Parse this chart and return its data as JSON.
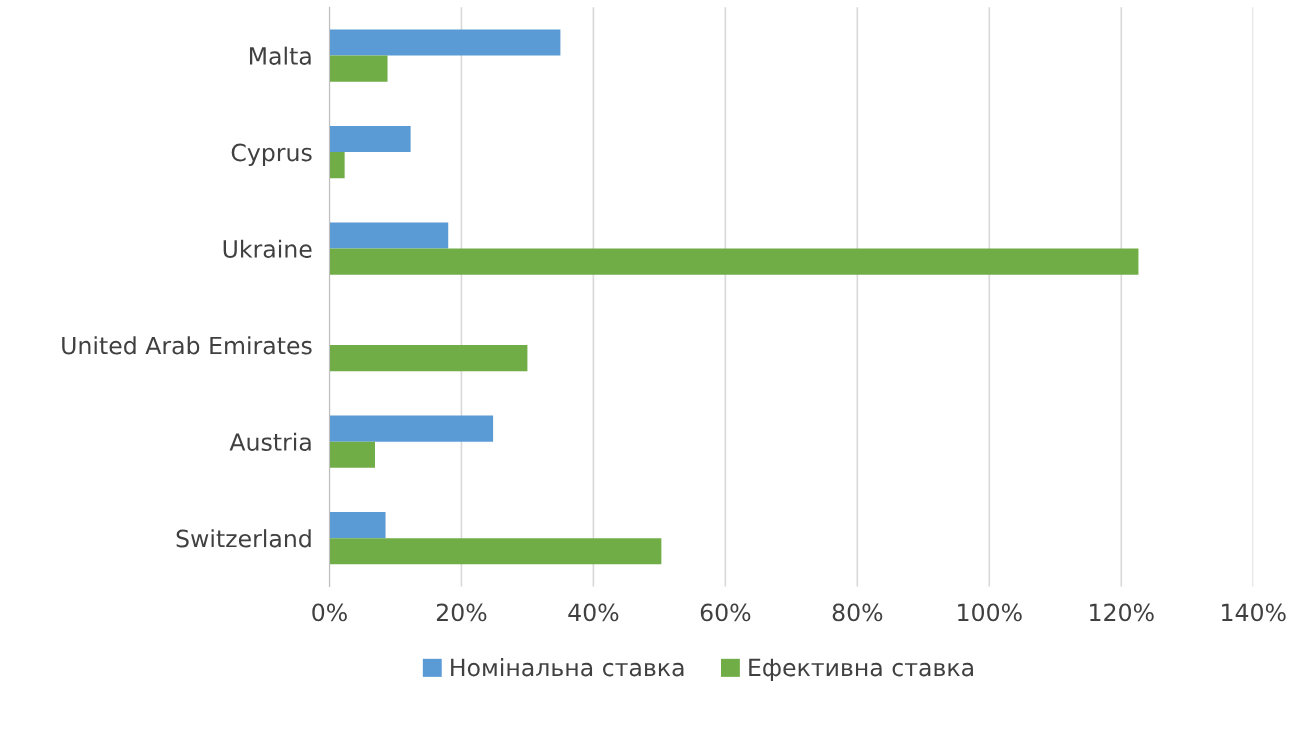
{
  "chart_data": {
    "type": "bar",
    "orientation": "horizontal",
    "categories": [
      "Malta",
      "Cyprus",
      "Ukraine",
      "United Arab Emirates",
      "Austria",
      "Switzerland"
    ],
    "series": [
      {
        "name": "Номінальна ставка",
        "color": "#5b9bd5",
        "values": [
          35,
          12.3,
          18,
          0,
          24.8,
          8.5
        ]
      },
      {
        "name": "Ефективна ставка",
        "color": "#70ad47",
        "values": [
          8.8,
          2.3,
          122.6,
          30,
          6.9,
          50.3
        ]
      }
    ],
    "xlim": [
      0,
      140
    ],
    "xticks": [
      {
        "value": 0,
        "label": "0%"
      },
      {
        "value": 20,
        "label": "20%"
      },
      {
        "value": 40,
        "label": "40%"
      },
      {
        "value": 60,
        "label": "60%"
      },
      {
        "value": 80,
        "label": "80%"
      },
      {
        "value": 100,
        "label": "100%"
      },
      {
        "value": 120,
        "label": "120%"
      },
      {
        "value": 140,
        "label": "140%"
      }
    ],
    "grid": "x",
    "legend": "bottom"
  }
}
